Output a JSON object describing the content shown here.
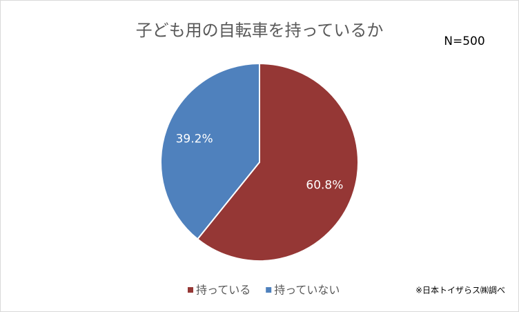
{
  "chart_data": {
    "type": "pie",
    "title": "子ども用の自転車を持っているか",
    "annotation": "N=500",
    "source": "※日本トイザらス㈱調べ",
    "categories": [
      "持っている",
      "持っていない"
    ],
    "values": [
      60.8,
      39.2
    ],
    "value_labels": [
      "60.8%",
      "39.2%"
    ],
    "colors": [
      "#953735",
      "#4f81bd"
    ],
    "legend": "bottom"
  }
}
